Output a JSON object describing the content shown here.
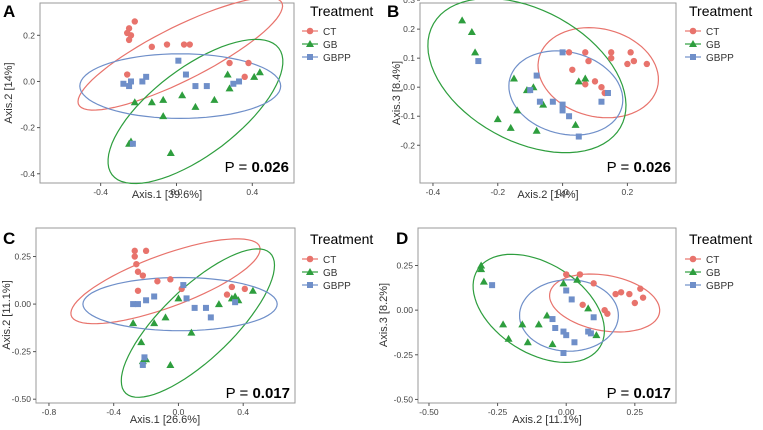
{
  "legend_title": "Treatment",
  "groups": [
    {
      "name": "CT",
      "color": "#E8736C",
      "marker": "circle"
    },
    {
      "name": "GB",
      "color": "#2E9E3E",
      "marker": "triangle"
    },
    {
      "name": "GBPP",
      "color": "#6F8FC9",
      "marker": "square"
    }
  ],
  "p_label": "P = ",
  "chart_data": [
    {
      "type": "scatter",
      "panel": "A",
      "xlabel": "Axis.1  [39.6%]",
      "ylabel": "Axis.2  [14%]",
      "xlim": [
        -0.72,
        0.62
      ],
      "ylim": [
        -0.44,
        0.34
      ],
      "xticks": [
        -0.4,
        0.0,
        0.4
      ],
      "xtick_labels": [
        "-0.4",
        "0.0",
        "0.4"
      ],
      "yticks": [
        -0.4,
        -0.2,
        0.0,
        0.2
      ],
      "ytick_labels": [
        "-0.4",
        "-0.2",
        "0.0",
        "0.2"
      ],
      "p_value": "0.026",
      "series": [
        {
          "name": "CT",
          "points": [
            [
              -0.22,
              0.26
            ],
            [
              -0.25,
              0.23
            ],
            [
              -0.26,
              0.21
            ],
            [
              -0.25,
              0.18
            ],
            [
              -0.24,
              0.2
            ],
            [
              -0.13,
              0.15
            ],
            [
              -0.05,
              0.16
            ],
            [
              0.04,
              0.16
            ],
            [
              0.28,
              0.08
            ],
            [
              0.38,
              0.08
            ],
            [
              0.36,
              0.02
            ],
            [
              -0.26,
              0.03
            ],
            [
              0.07,
              0.16
            ]
          ]
        },
        {
          "name": "GB",
          "points": [
            [
              0.27,
              0.03
            ],
            [
              0.41,
              0.02
            ],
            [
              0.44,
              0.04
            ],
            [
              0.28,
              -0.03
            ],
            [
              0.2,
              -0.08
            ],
            [
              0.03,
              -0.06
            ],
            [
              -0.07,
              -0.08
            ],
            [
              -0.13,
              -0.09
            ],
            [
              -0.22,
              -0.09
            ],
            [
              -0.07,
              -0.15
            ],
            [
              -0.24,
              -0.26
            ],
            [
              -0.25,
              -0.27
            ],
            [
              -0.03,
              -0.31
            ],
            [
              0.1,
              -0.11
            ]
          ]
        },
        {
          "name": "GBPP",
          "points": [
            [
              -0.28,
              -0.01
            ],
            [
              -0.25,
              -0.02
            ],
            [
              -0.24,
              0.0
            ],
            [
              -0.18,
              0.0
            ],
            [
              -0.16,
              0.02
            ],
            [
              0.01,
              0.09
            ],
            [
              0.05,
              0.03
            ],
            [
              0.1,
              -0.02
            ],
            [
              0.16,
              -0.02
            ],
            [
              0.3,
              -0.01
            ],
            [
              0.33,
              0.0
            ],
            [
              -0.23,
              -0.27
            ]
          ]
        }
      ],
      "ellipses": [
        {
          "group": "CT",
          "center": [
            0.02,
            0.12
          ],
          "semi_axes": [
            0.58,
            0.12
          ],
          "angle_deg": 22
        },
        {
          "group": "GB",
          "center": [
            0.1,
            -0.13
          ],
          "semi_axes": [
            0.52,
            0.2
          ],
          "angle_deg": 30
        },
        {
          "group": "GBPP",
          "center": [
            0.02,
            -0.02
          ],
          "semi_axes": [
            0.53,
            0.14
          ],
          "angle_deg": 0
        }
      ]
    },
    {
      "type": "scatter",
      "panel": "B",
      "xlabel": "Axis.2  [14%]",
      "ylabel": "Axis.3  [8.4%]",
      "xlim": [
        -0.44,
        0.35
      ],
      "ylim": [
        -0.33,
        0.29
      ],
      "xticks": [
        -0.4,
        -0.2,
        0.0,
        0.2
      ],
      "xtick_labels": [
        "-0.4",
        "-0.2",
        "0.0",
        "0.2"
      ],
      "yticks": [
        -0.2,
        -0.1,
        0.0,
        0.1,
        0.2,
        0.3
      ],
      "ytick_labels": [
        "-0.2",
        "-0.1",
        "0.0",
        "0.1",
        "0.2",
        "0.3"
      ],
      "p_value": "0.026",
      "series": [
        {
          "name": "CT",
          "points": [
            [
              0.02,
              0.12
            ],
            [
              0.07,
              0.12
            ],
            [
              0.15,
              0.12
            ],
            [
              0.21,
              0.12
            ],
            [
              0.26,
              0.08
            ],
            [
              0.22,
              0.09
            ],
            [
              0.2,
              0.08
            ],
            [
              0.15,
              0.1
            ],
            [
              0.08,
              0.09
            ],
            [
              0.03,
              0.06
            ],
            [
              0.1,
              0.02
            ],
            [
              0.12,
              0.0
            ],
            [
              0.13,
              -0.02
            ],
            [
              0.07,
              0.01
            ]
          ]
        },
        {
          "name": "GB",
          "points": [
            [
              -0.31,
              0.23
            ],
            [
              -0.28,
              0.19
            ],
            [
              -0.27,
              0.12
            ],
            [
              -0.15,
              0.03
            ],
            [
              -0.11,
              -0.01
            ],
            [
              -0.09,
              0.0
            ],
            [
              -0.06,
              -0.06
            ],
            [
              -0.14,
              -0.08
            ],
            [
              -0.2,
              -0.11
            ],
            [
              -0.16,
              -0.14
            ],
            [
              -0.08,
              -0.15
            ],
            [
              0.04,
              -0.13
            ],
            [
              0.05,
              0.02
            ],
            [
              0.07,
              0.03
            ]
          ]
        },
        {
          "name": "GBPP",
          "points": [
            [
              -0.26,
              0.09
            ],
            [
              0.0,
              0.12
            ],
            [
              -0.08,
              0.04
            ],
            [
              -0.1,
              -0.01
            ],
            [
              -0.07,
              -0.05
            ],
            [
              -0.03,
              -0.05
            ],
            [
              0.0,
              -0.06
            ],
            [
              0.0,
              -0.08
            ],
            [
              0.02,
              -0.1
            ],
            [
              0.05,
              -0.17
            ],
            [
              0.12,
              -0.05
            ],
            [
              0.14,
              -0.02
            ]
          ]
        }
      ],
      "ellipses": [
        {
          "group": "CT",
          "center": [
            0.11,
            0.05
          ],
          "semi_axes": [
            0.19,
            0.15
          ],
          "angle_deg": -20
        },
        {
          "group": "GB",
          "center": [
            -0.11,
            0.04
          ],
          "semi_axes": [
            0.34,
            0.22
          ],
          "angle_deg": -35
        },
        {
          "group": "GBPP",
          "center": [
            0.01,
            -0.02
          ],
          "semi_axes": [
            0.18,
            0.14
          ],
          "angle_deg": -20
        }
      ]
    },
    {
      "type": "scatter",
      "panel": "C",
      "xlabel": "Axis.1  [26.6%]",
      "ylabel": "Axis.2  [11.1%]",
      "xlim": [
        -0.88,
        0.72
      ],
      "ylim": [
        -0.52,
        0.4
      ],
      "xticks": [
        -0.8,
        -0.4,
        0.0,
        0.4
      ],
      "xtick_labels": [
        "-0.8",
        "-0.4",
        "0.0",
        "0.4"
      ],
      "yticks": [
        -0.5,
        -0.25,
        0.0,
        0.25
      ],
      "ytick_labels": [
        "-0.50",
        "-0.25",
        "0.00",
        "0.25"
      ],
      "p_value": "0.017",
      "series": [
        {
          "name": "CT",
          "points": [
            [
              -0.27,
              0.28
            ],
            [
              -0.27,
              0.25
            ],
            [
              -0.26,
              0.21
            ],
            [
              -0.25,
              0.17
            ],
            [
              -0.2,
              0.28
            ],
            [
              -0.22,
              0.15
            ],
            [
              -0.13,
              0.12
            ],
            [
              -0.05,
              0.13
            ],
            [
              0.02,
              0.08
            ],
            [
              0.33,
              0.09
            ],
            [
              0.41,
              0.08
            ],
            [
              -0.25,
              0.07
            ],
            [
              0.3,
              0.05
            ]
          ]
        },
        {
          "name": "GB",
          "points": [
            [
              0.37,
              0.02
            ],
            [
              0.46,
              0.07
            ],
            [
              0.33,
              0.03
            ],
            [
              0.25,
              0.0
            ],
            [
              0.0,
              0.03
            ],
            [
              -0.08,
              -0.07
            ],
            [
              -0.15,
              -0.1
            ],
            [
              -0.28,
              -0.1
            ],
            [
              -0.23,
              -0.2
            ],
            [
              -0.2,
              -0.29
            ],
            [
              -0.22,
              -0.3
            ],
            [
              -0.05,
              -0.32
            ],
            [
              0.08,
              -0.15
            ],
            [
              0.35,
              0.04
            ]
          ]
        },
        {
          "name": "GBPP",
          "points": [
            [
              -0.28,
              0.0
            ],
            [
              -0.25,
              0.0
            ],
            [
              -0.2,
              0.02
            ],
            [
              -0.15,
              0.04
            ],
            [
              0.03,
              0.1
            ],
            [
              0.05,
              0.03
            ],
            [
              0.1,
              -0.02
            ],
            [
              0.17,
              -0.02
            ],
            [
              0.2,
              -0.07
            ],
            [
              0.35,
              0.01
            ],
            [
              -0.21,
              -0.28
            ],
            [
              -0.22,
              -0.32
            ]
          ]
        }
      ],
      "ellipses": [
        {
          "group": "CT",
          "center": [
            -0.08,
            0.12
          ],
          "semi_axes": [
            0.61,
            0.14
          ],
          "angle_deg": 17
        },
        {
          "group": "GB",
          "center": [
            0.12,
            -0.1
          ],
          "semi_axes": [
            0.58,
            0.2
          ],
          "angle_deg": 38
        },
        {
          "group": "GBPP",
          "center": [
            0.01,
            0.0
          ],
          "semi_axes": [
            0.6,
            0.14
          ],
          "angle_deg": 0
        }
      ]
    },
    {
      "type": "scatter",
      "panel": "D",
      "xlabel": "Axis.2  [11.1%]",
      "ylabel": "Axis.3  [8.2%]",
      "xlim": [
        -0.54,
        0.4
      ],
      "ylim": [
        -0.52,
        0.46
      ],
      "xticks": [
        -0.5,
        -0.25,
        0.0,
        0.25
      ],
      "xtick_labels": [
        "-0.50",
        "-0.25",
        "0.00",
        "0.25"
      ],
      "yticks": [
        -0.5,
        -0.25,
        0.0,
        0.25
      ],
      "ytick_labels": [
        "-0.50",
        "-0.25",
        "0.00",
        "0.25"
      ],
      "p_value": "0.017",
      "series": [
        {
          "name": "CT",
          "points": [
            [
              0.0,
              0.2
            ],
            [
              0.05,
              0.2
            ],
            [
              0.1,
              0.15
            ],
            [
              0.18,
              0.09
            ],
            [
              0.23,
              0.09
            ],
            [
              0.27,
              0.12
            ],
            [
              0.28,
              0.07
            ],
            [
              0.25,
              0.04
            ],
            [
              0.2,
              0.1
            ],
            [
              0.06,
              0.03
            ],
            [
              0.14,
              0.0
            ],
            [
              0.15,
              -0.02
            ]
          ]
        },
        {
          "name": "GB",
          "points": [
            [
              -0.31,
              0.25
            ],
            [
              -0.31,
              0.23
            ],
            [
              -0.3,
              0.16
            ],
            [
              -0.01,
              0.15
            ],
            [
              0.04,
              0.17
            ],
            [
              0.08,
              0.01
            ],
            [
              -0.07,
              -0.03
            ],
            [
              -0.1,
              -0.08
            ],
            [
              -0.16,
              -0.08
            ],
            [
              -0.23,
              -0.08
            ],
            [
              -0.21,
              -0.16
            ],
            [
              -0.14,
              -0.18
            ],
            [
              -0.05,
              -0.19
            ],
            [
              0.11,
              -0.14
            ]
          ]
        },
        {
          "name": "GBPP",
          "points": [
            [
              -0.27,
              0.14
            ],
            [
              0.0,
              0.11
            ],
            [
              0.02,
              0.06
            ],
            [
              -0.05,
              -0.05
            ],
            [
              -0.04,
              -0.1
            ],
            [
              -0.01,
              -0.12
            ],
            [
              0.0,
              -0.14
            ],
            [
              0.03,
              -0.18
            ],
            [
              -0.01,
              -0.24
            ],
            [
              0.08,
              -0.12
            ],
            [
              0.1,
              -0.04
            ],
            [
              0.09,
              -0.13
            ]
          ]
        }
      ],
      "ellipses": [
        {
          "group": "CT",
          "center": [
            0.14,
            0.04
          ],
          "semi_axes": [
            0.21,
            0.15
          ],
          "angle_deg": -25
        },
        {
          "group": "GB",
          "center": [
            -0.1,
            0.01
          ],
          "semi_axes": [
            0.33,
            0.2
          ],
          "angle_deg": -60
        },
        {
          "group": "GBPP",
          "center": [
            0.01,
            -0.03
          ],
          "semi_axes": [
            0.18,
            0.2
          ],
          "angle_deg": 0
        }
      ]
    }
  ]
}
